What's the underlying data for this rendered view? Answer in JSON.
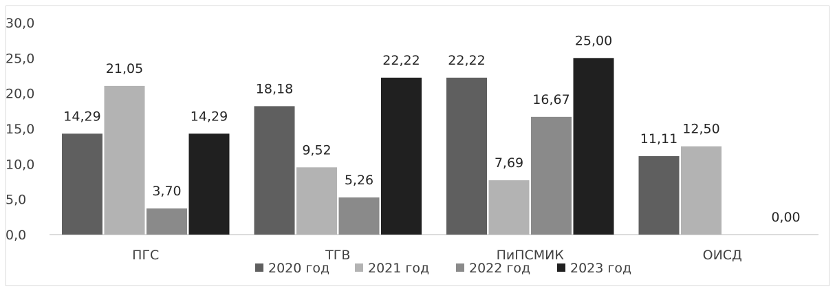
{
  "chart_data": {
    "type": "bar",
    "title": "",
    "xlabel": "",
    "ylabel": "",
    "ylim": [
      0,
      30
    ],
    "yticks": [
      "0,0",
      "5,0",
      "10,0",
      "15,0",
      "20,0",
      "25,0",
      "30,0"
    ],
    "categories": [
      "ПГС",
      "ТГВ",
      "ПиПСМИК",
      "ОИСД"
    ],
    "series": [
      {
        "name": "2020 год",
        "color": "#5f5f5f",
        "values": [
          14.29,
          18.18,
          22.22,
          11.11
        ],
        "labels": [
          "14,29",
          "18,18",
          "22,22",
          "11,11"
        ]
      },
      {
        "name": "2021 год",
        "color": "#b3b3b3",
        "values": [
          21.05,
          9.52,
          7.69,
          12.5
        ],
        "labels": [
          "21,05",
          "9,52",
          "7,69",
          "12,50"
        ]
      },
      {
        "name": "2022 год",
        "color": "#8a8a8a",
        "values": [
          3.7,
          5.26,
          16.67,
          null
        ],
        "labels": [
          "3,70",
          "5,26",
          "16,67",
          ""
        ]
      },
      {
        "name": "2023 год",
        "color": "#202020",
        "values": [
          14.29,
          22.22,
          25.0,
          0.0
        ],
        "labels": [
          "14,29",
          "22,22",
          "25,00",
          "0,00"
        ]
      }
    ],
    "grid": false,
    "legend": "bottom"
  }
}
